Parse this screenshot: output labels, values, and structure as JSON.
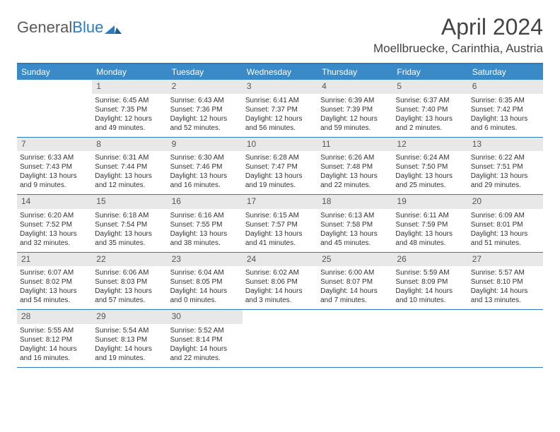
{
  "logo": {
    "text1": "General",
    "text2": "Blue"
  },
  "header": {
    "month_title": "April 2024",
    "location": "Moellbruecke, Carinthia, Austria"
  },
  "colors": {
    "header_bar": "#3a8ac7",
    "border": "#2b7bbf",
    "daynum_bg": "#e8e8e8",
    "text": "#333333"
  },
  "days_of_week": [
    "Sunday",
    "Monday",
    "Tuesday",
    "Wednesday",
    "Thursday",
    "Friday",
    "Saturday"
  ],
  "weeks": [
    [
      null,
      {
        "n": "1",
        "sr": "6:45 AM",
        "ss": "7:35 PM",
        "dl": "12 hours and 49 minutes."
      },
      {
        "n": "2",
        "sr": "6:43 AM",
        "ss": "7:36 PM",
        "dl": "12 hours and 52 minutes."
      },
      {
        "n": "3",
        "sr": "6:41 AM",
        "ss": "7:37 PM",
        "dl": "12 hours and 56 minutes."
      },
      {
        "n": "4",
        "sr": "6:39 AM",
        "ss": "7:39 PM",
        "dl": "12 hours and 59 minutes."
      },
      {
        "n": "5",
        "sr": "6:37 AM",
        "ss": "7:40 PM",
        "dl": "13 hours and 2 minutes."
      },
      {
        "n": "6",
        "sr": "6:35 AM",
        "ss": "7:42 PM",
        "dl": "13 hours and 6 minutes."
      }
    ],
    [
      {
        "n": "7",
        "sr": "6:33 AM",
        "ss": "7:43 PM",
        "dl": "13 hours and 9 minutes."
      },
      {
        "n": "8",
        "sr": "6:31 AM",
        "ss": "7:44 PM",
        "dl": "13 hours and 12 minutes."
      },
      {
        "n": "9",
        "sr": "6:30 AM",
        "ss": "7:46 PM",
        "dl": "13 hours and 16 minutes."
      },
      {
        "n": "10",
        "sr": "6:28 AM",
        "ss": "7:47 PM",
        "dl": "13 hours and 19 minutes."
      },
      {
        "n": "11",
        "sr": "6:26 AM",
        "ss": "7:48 PM",
        "dl": "13 hours and 22 minutes."
      },
      {
        "n": "12",
        "sr": "6:24 AM",
        "ss": "7:50 PM",
        "dl": "13 hours and 25 minutes."
      },
      {
        "n": "13",
        "sr": "6:22 AM",
        "ss": "7:51 PM",
        "dl": "13 hours and 29 minutes."
      }
    ],
    [
      {
        "n": "14",
        "sr": "6:20 AM",
        "ss": "7:52 PM",
        "dl": "13 hours and 32 minutes."
      },
      {
        "n": "15",
        "sr": "6:18 AM",
        "ss": "7:54 PM",
        "dl": "13 hours and 35 minutes."
      },
      {
        "n": "16",
        "sr": "6:16 AM",
        "ss": "7:55 PM",
        "dl": "13 hours and 38 minutes."
      },
      {
        "n": "17",
        "sr": "6:15 AM",
        "ss": "7:57 PM",
        "dl": "13 hours and 41 minutes."
      },
      {
        "n": "18",
        "sr": "6:13 AM",
        "ss": "7:58 PM",
        "dl": "13 hours and 45 minutes."
      },
      {
        "n": "19",
        "sr": "6:11 AM",
        "ss": "7:59 PM",
        "dl": "13 hours and 48 minutes."
      },
      {
        "n": "20",
        "sr": "6:09 AM",
        "ss": "8:01 PM",
        "dl": "13 hours and 51 minutes."
      }
    ],
    [
      {
        "n": "21",
        "sr": "6:07 AM",
        "ss": "8:02 PM",
        "dl": "13 hours and 54 minutes."
      },
      {
        "n": "22",
        "sr": "6:06 AM",
        "ss": "8:03 PM",
        "dl": "13 hours and 57 minutes."
      },
      {
        "n": "23",
        "sr": "6:04 AM",
        "ss": "8:05 PM",
        "dl": "14 hours and 0 minutes."
      },
      {
        "n": "24",
        "sr": "6:02 AM",
        "ss": "8:06 PM",
        "dl": "14 hours and 3 minutes."
      },
      {
        "n": "25",
        "sr": "6:00 AM",
        "ss": "8:07 PM",
        "dl": "14 hours and 7 minutes."
      },
      {
        "n": "26",
        "sr": "5:59 AM",
        "ss": "8:09 PM",
        "dl": "14 hours and 10 minutes."
      },
      {
        "n": "27",
        "sr": "5:57 AM",
        "ss": "8:10 PM",
        "dl": "14 hours and 13 minutes."
      }
    ],
    [
      {
        "n": "28",
        "sr": "5:55 AM",
        "ss": "8:12 PM",
        "dl": "14 hours and 16 minutes."
      },
      {
        "n": "29",
        "sr": "5:54 AM",
        "ss": "8:13 PM",
        "dl": "14 hours and 19 minutes."
      },
      {
        "n": "30",
        "sr": "5:52 AM",
        "ss": "8:14 PM",
        "dl": "14 hours and 22 minutes."
      },
      null,
      null,
      null,
      null
    ]
  ],
  "labels": {
    "sunrise": "Sunrise:",
    "sunset": "Sunset:",
    "daylight": "Daylight:"
  }
}
